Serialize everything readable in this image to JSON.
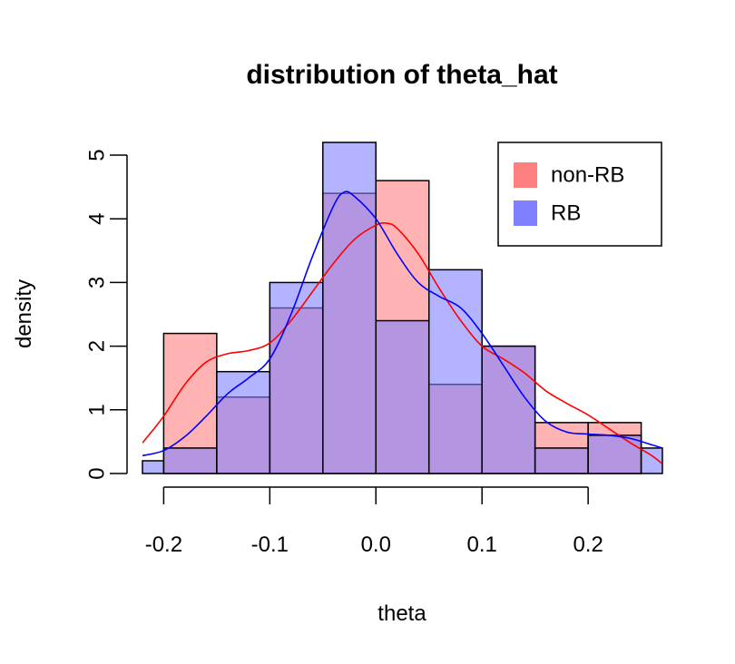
{
  "chart_data": {
    "type": "histogram",
    "title": "distribution of theta_hat",
    "xlabel": "theta",
    "ylabel": "density",
    "xlim": [
      -0.22,
      0.27
    ],
    "ylim": [
      0,
      5.2
    ],
    "xticks": [
      -0.2,
      -0.1,
      0.0,
      0.1,
      0.2
    ],
    "xtick_labels": [
      "-0.2",
      "-0.1",
      "0.0",
      "0.1",
      "0.2"
    ],
    "yticks": [
      0,
      1,
      2,
      3,
      4,
      5
    ],
    "ytick_labels": [
      "0",
      "1",
      "2",
      "3",
      "4",
      "5"
    ],
    "legend": {
      "position": "top-right",
      "entries": [
        {
          "label": "non-RB",
          "color": "#FF8080"
        },
        {
          "label": "RB",
          "color": "#8080FF"
        }
      ]
    },
    "series": [
      {
        "name": "non-RB",
        "fill_color": "#FF8080",
        "bin_edges": [
          -0.2,
          -0.15,
          -0.1,
          -0.05,
          0.0,
          0.05,
          0.1,
          0.15,
          0.2,
          0.25
        ],
        "values": [
          2.2,
          1.2,
          2.6,
          4.4,
          4.6,
          1.4,
          2.0,
          0.8,
          0.8
        ]
      },
      {
        "name": "RB",
        "fill_color": "#8080FF",
        "bin_edges": [
          -0.25,
          -0.2,
          -0.15,
          -0.1,
          -0.05,
          0.0,
          0.05,
          0.1,
          0.15,
          0.2,
          0.25,
          0.3
        ],
        "values": [
          0.2,
          0.4,
          1.6,
          3.0,
          5.2,
          2.4,
          3.2,
          2.0,
          0.4,
          0.6,
          0.4
        ]
      }
    ],
    "density_curves": [
      {
        "name": "non-RB",
        "color": "#FF0000",
        "points": [
          [
            -0.22,
            0.48
          ],
          [
            -0.2,
            0.9
          ],
          [
            -0.18,
            1.4
          ],
          [
            -0.16,
            1.75
          ],
          [
            -0.14,
            1.88
          ],
          [
            -0.12,
            1.93
          ],
          [
            -0.1,
            2.05
          ],
          [
            -0.08,
            2.4
          ],
          [
            -0.06,
            2.85
          ],
          [
            -0.04,
            3.3
          ],
          [
            -0.02,
            3.68
          ],
          [
            0.0,
            3.9
          ],
          [
            0.01,
            3.93
          ],
          [
            0.02,
            3.85
          ],
          [
            0.04,
            3.45
          ],
          [
            0.06,
            2.9
          ],
          [
            0.08,
            2.4
          ],
          [
            0.1,
            2.0
          ],
          [
            0.12,
            1.8
          ],
          [
            0.14,
            1.58
          ],
          [
            0.16,
            1.3
          ],
          [
            0.18,
            1.1
          ],
          [
            0.2,
            0.92
          ],
          [
            0.22,
            0.7
          ],
          [
            0.24,
            0.48
          ],
          [
            0.26,
            0.28
          ],
          [
            0.27,
            0.15
          ]
        ]
      },
      {
        "name": "RB",
        "color": "#0000FF",
        "points": [
          [
            -0.22,
            0.28
          ],
          [
            -0.2,
            0.36
          ],
          [
            -0.18,
            0.58
          ],
          [
            -0.16,
            0.9
          ],
          [
            -0.14,
            1.25
          ],
          [
            -0.12,
            1.5
          ],
          [
            -0.1,
            1.8
          ],
          [
            -0.08,
            2.5
          ],
          [
            -0.06,
            3.4
          ],
          [
            -0.04,
            4.2
          ],
          [
            -0.03,
            4.42
          ],
          [
            -0.02,
            4.35
          ],
          [
            0.0,
            4.0
          ],
          [
            0.02,
            3.45
          ],
          [
            0.04,
            3.0
          ],
          [
            0.06,
            2.78
          ],
          [
            0.08,
            2.6
          ],
          [
            0.1,
            2.2
          ],
          [
            0.12,
            1.7
          ],
          [
            0.14,
            1.2
          ],
          [
            0.16,
            0.82
          ],
          [
            0.18,
            0.65
          ],
          [
            0.2,
            0.62
          ],
          [
            0.22,
            0.6
          ],
          [
            0.24,
            0.55
          ],
          [
            0.26,
            0.45
          ],
          [
            0.27,
            0.4
          ]
        ]
      }
    ],
    "overlap_color": "#B07CC6"
  }
}
